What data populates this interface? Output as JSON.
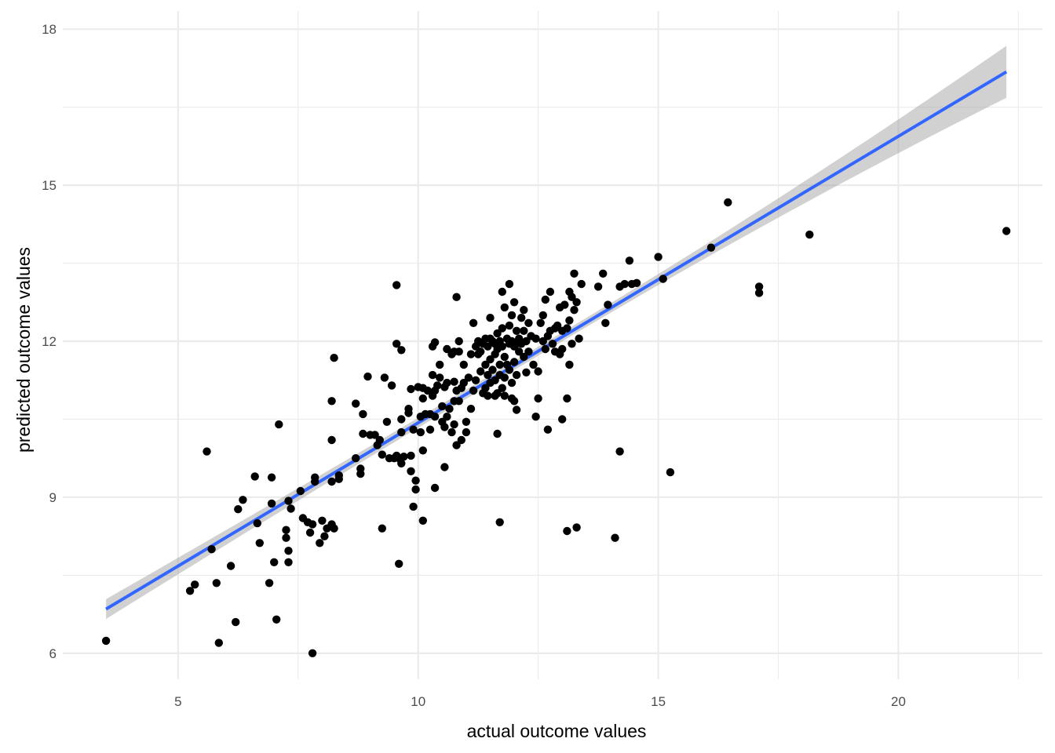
{
  "chart_data": {
    "type": "scatter",
    "title": "",
    "xlabel": "actual outcome values",
    "ylabel": "predicted outcome values",
    "xlim": [
      2.6,
      23.0
    ],
    "ylim": [
      5.5,
      18.35
    ],
    "x_ticks": [
      5,
      10,
      15,
      20
    ],
    "y_ticks": [
      6,
      9,
      12,
      15,
      18
    ],
    "x_tick_labels": [
      "5",
      "10",
      "15",
      "20"
    ],
    "y_tick_labels": [
      "6",
      "9",
      "12",
      "15",
      "18"
    ],
    "grid": true,
    "colors": {
      "points": "#000000",
      "fit_line": "#3366ff",
      "confidence_band": "#999999",
      "grid": "#ebebeb"
    },
    "fit": {
      "method": "linear",
      "x_range": [
        3.5,
        22.25
      ],
      "y_at_min": 6.85,
      "y_at_max": 17.18,
      "ci_half_width_min": 0.19,
      "ci_half_width_max": 0.5
    },
    "points": [
      [
        3.5,
        6.24
      ],
      [
        5.25,
        7.2
      ],
      [
        5.35,
        7.32
      ],
      [
        5.6,
        9.88
      ],
      [
        5.7,
        8.0
      ],
      [
        5.8,
        7.35
      ],
      [
        5.85,
        6.2
      ],
      [
        6.1,
        7.68
      ],
      [
        6.2,
        6.6
      ],
      [
        6.25,
        8.77
      ],
      [
        6.35,
        8.95
      ],
      [
        6.6,
        9.4
      ],
      [
        6.65,
        8.5
      ],
      [
        6.7,
        8.12
      ],
      [
        6.9,
        7.35
      ],
      [
        6.95,
        8.88
      ],
      [
        6.95,
        9.38
      ],
      [
        7.0,
        7.75
      ],
      [
        7.05,
        6.65
      ],
      [
        7.1,
        10.4
      ],
      [
        7.25,
        8.37
      ],
      [
        7.25,
        8.22
      ],
      [
        7.3,
        7.75
      ],
      [
        7.3,
        7.97
      ],
      [
        7.3,
        8.93
      ],
      [
        7.35,
        8.78
      ],
      [
        7.55,
        9.12
      ],
      [
        7.6,
        8.6
      ],
      [
        7.7,
        8.52
      ],
      [
        7.75,
        8.32
      ],
      [
        7.8,
        6.0
      ],
      [
        7.8,
        8.48
      ],
      [
        7.85,
        9.38
      ],
      [
        7.85,
        9.3
      ],
      [
        7.95,
        8.12
      ],
      [
        8.0,
        8.55
      ],
      [
        8.05,
        8.25
      ],
      [
        8.1,
        8.4
      ],
      [
        8.2,
        8.48
      ],
      [
        8.2,
        9.3
      ],
      [
        8.2,
        10.1
      ],
      [
        8.2,
        10.85
      ],
      [
        8.25,
        11.68
      ],
      [
        8.25,
        8.4
      ],
      [
        8.35,
        9.35
      ],
      [
        8.35,
        9.42
      ],
      [
        8.7,
        10.8
      ],
      [
        8.7,
        9.75
      ],
      [
        8.8,
        9.45
      ],
      [
        8.8,
        9.55
      ],
      [
        8.85,
        10.6
      ],
      [
        8.85,
        10.22
      ],
      [
        8.95,
        11.32
      ],
      [
        9.0,
        10.2
      ],
      [
        9.1,
        10.2
      ],
      [
        9.15,
        10.0
      ],
      [
        9.2,
        10.1
      ],
      [
        9.25,
        8.4
      ],
      [
        9.25,
        9.82
      ],
      [
        9.3,
        11.3
      ],
      [
        9.35,
        10.45
      ],
      [
        9.4,
        9.75
      ],
      [
        9.45,
        11.15
      ],
      [
        9.5,
        9.75
      ],
      [
        9.55,
        13.08
      ],
      [
        9.55,
        11.95
      ],
      [
        9.55,
        9.8
      ],
      [
        9.6,
        7.72
      ],
      [
        9.6,
        9.75
      ],
      [
        9.65,
        11.83
      ],
      [
        9.65,
        10.5
      ],
      [
        9.65,
        10.25
      ],
      [
        9.65,
        9.65
      ],
      [
        9.7,
        9.78
      ],
      [
        9.8,
        10.7
      ],
      [
        9.8,
        10.62
      ],
      [
        9.85,
        11.08
      ],
      [
        9.85,
        9.5
      ],
      [
        9.85,
        9.8
      ],
      [
        9.9,
        10.3
      ],
      [
        9.9,
        8.82
      ],
      [
        9.95,
        9.32
      ],
      [
        9.95,
        9.15
      ],
      [
        10.0,
        11.12
      ],
      [
        10.05,
        10.55
      ],
      [
        10.05,
        10.25
      ],
      [
        10.1,
        11.1
      ],
      [
        10.1,
        10.9
      ],
      [
        10.1,
        9.9
      ],
      [
        10.1,
        8.55
      ],
      [
        10.15,
        10.6
      ],
      [
        10.2,
        11.05
      ],
      [
        10.25,
        10.3
      ],
      [
        10.25,
        10.6
      ],
      [
        10.3,
        11.9
      ],
      [
        10.3,
        11.35
      ],
      [
        10.3,
        10.95
      ],
      [
        10.35,
        11.98
      ],
      [
        10.35,
        11.05
      ],
      [
        10.35,
        10.55
      ],
      [
        10.35,
        9.18
      ],
      [
        10.4,
        11.15
      ],
      [
        10.45,
        11.55
      ],
      [
        10.45,
        11.3
      ],
      [
        10.5,
        10.75
      ],
      [
        10.5,
        10.45
      ],
      [
        10.55,
        11.12
      ],
      [
        10.55,
        10.35
      ],
      [
        10.55,
        9.58
      ],
      [
        10.6,
        11.85
      ],
      [
        10.6,
        11.2
      ],
      [
        10.6,
        10.55
      ],
      [
        10.65,
        10.7
      ],
      [
        10.7,
        11.75
      ],
      [
        10.7,
        10.25
      ],
      [
        10.75,
        11.8
      ],
      [
        10.75,
        11.22
      ],
      [
        10.75,
        10.85
      ],
      [
        10.75,
        10.4
      ],
      [
        10.8,
        12.85
      ],
      [
        10.8,
        11.05
      ],
      [
        10.8,
        10.0
      ],
      [
        10.85,
        12.0
      ],
      [
        10.85,
        11.8
      ],
      [
        10.85,
        10.85
      ],
      [
        10.9,
        11.1
      ],
      [
        10.9,
        10.1
      ],
      [
        10.95,
        11.55
      ],
      [
        10.95,
        11.2
      ],
      [
        11.0,
        10.45
      ],
      [
        11.0,
        10.25
      ],
      [
        11.05,
        11.3
      ],
      [
        11.1,
        11.75
      ],
      [
        11.1,
        10.7
      ],
      [
        11.15,
        12.35
      ],
      [
        11.15,
        11.05
      ],
      [
        11.2,
        11.9
      ],
      [
        11.2,
        11.25
      ],
      [
        11.25,
        12.0
      ],
      [
        11.25,
        11.75
      ],
      [
        11.3,
        11.8
      ],
      [
        11.3,
        11.42
      ],
      [
        11.35,
        11.95
      ],
      [
        11.35,
        11.0
      ],
      [
        11.4,
        12.05
      ],
      [
        11.4,
        11.55
      ],
      [
        11.4,
        11.1
      ],
      [
        11.45,
        11.9
      ],
      [
        11.45,
        11.35
      ],
      [
        11.45,
        10.95
      ],
      [
        11.5,
        12.45
      ],
      [
        11.5,
        12.05
      ],
      [
        11.5,
        11.65
      ],
      [
        11.5,
        11.2
      ],
      [
        11.55,
        12.0
      ],
      [
        11.55,
        11.45
      ],
      [
        11.6,
        11.95
      ],
      [
        11.6,
        11.75
      ],
      [
        11.6,
        11.25
      ],
      [
        11.6,
        10.95
      ],
      [
        11.65,
        12.15
      ],
      [
        11.65,
        11.85
      ],
      [
        11.65,
        11.0
      ],
      [
        11.65,
        10.22
      ],
      [
        11.7,
        12.0
      ],
      [
        11.7,
        11.55
      ],
      [
        11.7,
        11.35
      ],
      [
        11.7,
        8.52
      ],
      [
        11.75,
        12.95
      ],
      [
        11.75,
        12.25
      ],
      [
        11.75,
        11.9
      ],
      [
        11.75,
        11.1
      ],
      [
        11.8,
        12.65
      ],
      [
        11.8,
        11.7
      ],
      [
        11.8,
        11.3
      ],
      [
        11.8,
        10.95
      ],
      [
        11.85,
        12.05
      ],
      [
        11.85,
        11.55
      ],
      [
        11.9,
        13.1
      ],
      [
        11.9,
        12.3
      ],
      [
        11.9,
        11.95
      ],
      [
        11.9,
        11.45
      ],
      [
        11.95,
        12.5
      ],
      [
        11.95,
        12.0
      ],
      [
        11.95,
        11.2
      ],
      [
        11.95,
        10.9
      ],
      [
        12.0,
        12.75
      ],
      [
        12.0,
        11.9
      ],
      [
        12.0,
        11.6
      ],
      [
        12.0,
        10.85
      ],
      [
        12.05,
        12.2
      ],
      [
        12.05,
        11.95
      ],
      [
        12.05,
        11.35
      ],
      [
        12.05,
        10.68
      ],
      [
        12.1,
        12.05
      ],
      [
        12.1,
        11.8
      ],
      [
        12.15,
        12.45
      ],
      [
        12.15,
        11.95
      ],
      [
        12.2,
        12.6
      ],
      [
        12.2,
        12.2
      ],
      [
        12.2,
        11.7
      ],
      [
        12.25,
        12.0
      ],
      [
        12.25,
        11.4
      ],
      [
        12.3,
        12.35
      ],
      [
        12.3,
        11.8
      ],
      [
        12.35,
        12.1
      ],
      [
        12.4,
        11.55
      ],
      [
        12.45,
        12.05
      ],
      [
        12.45,
        10.55
      ],
      [
        12.5,
        11.42
      ],
      [
        12.5,
        10.9
      ],
      [
        12.55,
        12.35
      ],
      [
        12.6,
        12.5
      ],
      [
        12.6,
        12.0
      ],
      [
        12.65,
        12.8
      ],
      [
        12.65,
        11.85
      ],
      [
        12.7,
        12.1
      ],
      [
        12.7,
        10.3
      ],
      [
        12.75,
        12.95
      ],
      [
        12.75,
        12.2
      ],
      [
        12.8,
        11.95
      ],
      [
        12.85,
        12.25
      ],
      [
        12.85,
        11.8
      ],
      [
        12.9,
        12.3
      ],
      [
        12.95,
        12.65
      ],
      [
        12.95,
        11.75
      ],
      [
        13.0,
        12.2
      ],
      [
        13.0,
        11.85
      ],
      [
        13.0,
        10.5
      ],
      [
        13.05,
        12.7
      ],
      [
        13.1,
        12.25
      ],
      [
        13.1,
        10.9
      ],
      [
        13.1,
        8.35
      ],
      [
        13.15,
        12.95
      ],
      [
        13.15,
        12.4
      ],
      [
        13.15,
        11.55
      ],
      [
        13.2,
        12.85
      ],
      [
        13.2,
        11.95
      ],
      [
        13.25,
        13.3
      ],
      [
        13.25,
        12.6
      ],
      [
        13.3,
        12.75
      ],
      [
        13.3,
        8.42
      ],
      [
        13.35,
        12.05
      ],
      [
        13.4,
        13.1
      ],
      [
        13.75,
        13.05
      ],
      [
        13.85,
        13.3
      ],
      [
        13.9,
        12.35
      ],
      [
        13.95,
        12.7
      ],
      [
        14.1,
        8.22
      ],
      [
        14.2,
        13.05
      ],
      [
        14.2,
        9.88
      ],
      [
        14.3,
        13.1
      ],
      [
        14.4,
        13.55
      ],
      [
        14.45,
        13.1
      ],
      [
        14.55,
        13.12
      ],
      [
        15.0,
        13.62
      ],
      [
        15.1,
        13.2
      ],
      [
        15.25,
        9.48
      ],
      [
        16.1,
        13.8
      ],
      [
        16.45,
        14.67
      ],
      [
        17.1,
        13.05
      ],
      [
        17.1,
        12.93
      ],
      [
        18.15,
        14.05
      ],
      [
        22.25,
        14.12
      ]
    ]
  }
}
